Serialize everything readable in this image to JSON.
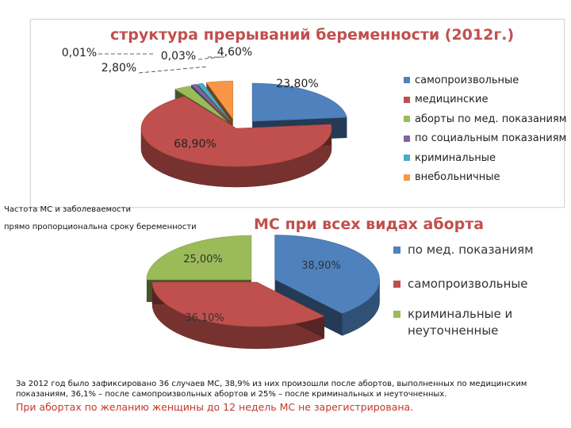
{
  "chart_data": [
    {
      "type": "pie",
      "title": "структура прерываний беременности (2012г.)",
      "categories": [
        "самопроизвольные",
        "медицинские",
        "аборты по мед. показаниям",
        "по социальным показаниям",
        "криминальные",
        "внебольничные"
      ],
      "values": [
        23.8,
        68.9,
        2.8,
        0.01,
        0.03,
        4.6
      ],
      "labels": [
        "23,80%",
        "68,90%",
        "2,80%",
        "0,01%",
        "0,03%",
        "4,60%"
      ],
      "colors": [
        "#4f81bd",
        "#c0504d",
        "#9bbb59",
        "#8064a2",
        "#4bacc6",
        "#f79646"
      ],
      "legend_position": "right"
    },
    {
      "type": "pie",
      "title": "МС при всех видах аборта",
      "categories": [
        "по мед. показаниям",
        "самопроизвольные",
        "криминальные и неуточненные"
      ],
      "values": [
        38.9,
        36.1,
        25.0
      ],
      "labels": [
        "38,90%",
        "36,10%",
        "25,00%"
      ],
      "colors": [
        "#4f81bd",
        "#c0504d",
        "#9bbb59"
      ],
      "legend_position": "right"
    }
  ],
  "notes": {
    "line1": "Частота МС и заболеваемости",
    "line2": "прямо пропорциональна сроку беременности"
  },
  "caption": "За 2012 год было зафиксировано 36 случаев МС, 38,9% из них произошли после абортов, выполненных по медицинским показаниям, 36,1% – после самопроизвольных абортов и 25% – после криминальных и неуточненных.",
  "conclusion": "При абортах по желанию женщины до 12 недель МС не зарегистрирована."
}
